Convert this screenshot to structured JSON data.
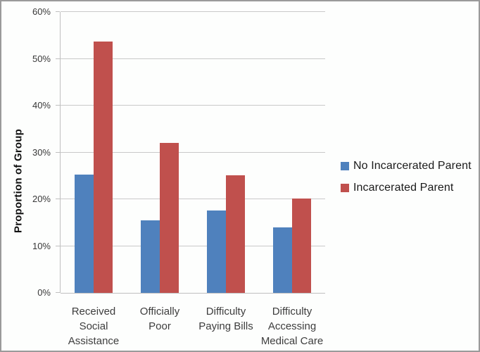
{
  "chart_data": {
    "type": "bar",
    "title": "",
    "categories": [
      "Received Social Assistance",
      "Officially Poor",
      "Difficulty Paying Bills",
      "Difficulty Accessing Medical Care"
    ],
    "category_label_lines": [
      [
        "Received",
        "Social",
        "Assistance"
      ],
      [
        "Officially",
        "Poor"
      ],
      [
        "Difficulty",
        "Paying Bills"
      ],
      [
        "Difficulty",
        "Accessing",
        "Medical Care"
      ]
    ],
    "series": [
      {
        "name": "No Incarcerated Parent",
        "color": "#4F81BD",
        "values": [
          25.3,
          15.5,
          17.6,
          14.0
        ]
      },
      {
        "name": "Incarcerated Parent",
        "color": "#C0504D",
        "values": [
          53.7,
          32.0,
          25.1,
          20.2
        ]
      }
    ],
    "xlabel": "",
    "ylabel": "Proportion of Group",
    "ylim": [
      0,
      60
    ],
    "ytick_step": 10,
    "ytick_labels": [
      "0%",
      "10%",
      "20%",
      "30%",
      "40%",
      "50%",
      "60%"
    ],
    "grid": true,
    "legend_position": "right"
  },
  "colors": {
    "background": "#FDFEFD",
    "frame_border": "#9A9A9A",
    "gridline": "#C9C9C9",
    "axis": "#BFBFBF",
    "tick_text": "#383838",
    "category_text": "#3D3D3D",
    "legend_text": "#1A1A1A",
    "series_blue": "#4F81BD",
    "series_red": "#C0504D"
  }
}
